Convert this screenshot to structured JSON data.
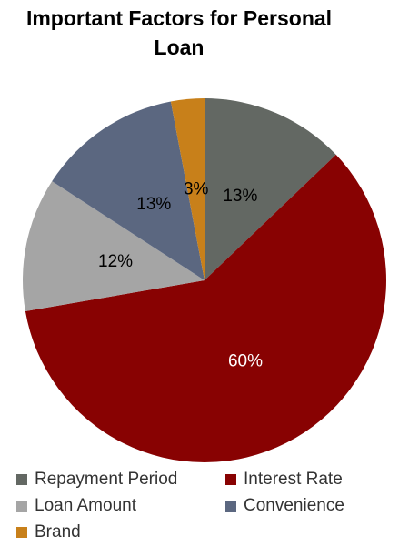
{
  "chart_data": {
    "type": "pie",
    "title": "Important Factors for Personal Loan",
    "categories": [
      "Repayment Period",
      "Interest Rate",
      "Loan Amount",
      "Convenience",
      "Brand"
    ],
    "values": [
      13,
      60,
      12,
      13,
      3
    ],
    "value_labels": [
      "13%",
      "60%",
      "12%",
      "13%",
      "3%"
    ],
    "colors": [
      "#636863",
      "#880202",
      "#a5a5a5",
      "#5b6780",
      "#c8801a"
    ],
    "legend": "bottom"
  }
}
